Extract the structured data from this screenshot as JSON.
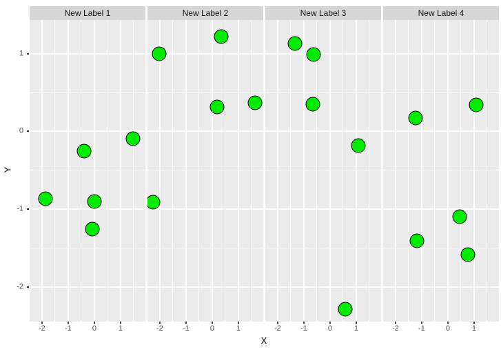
{
  "chart_data": {
    "type": "scatter",
    "title": "",
    "xlabel": "X",
    "ylabel": "Y",
    "x_domain": [
      -2.47,
      1.95
    ],
    "y_domain": [
      -2.44,
      1.43
    ],
    "x_major_ticks": [
      -2,
      -1,
      0,
      1
    ],
    "x_minor_ticks": [
      -1.5,
      -0.5,
      0.5,
      1.5
    ],
    "y_major_ticks": [
      1,
      0,
      -1,
      -2
    ],
    "y_minor_ticks": [
      0.5,
      -0.5,
      -1.5
    ],
    "grid": "on",
    "legend": "none",
    "facets": [
      {
        "label": "New Label 1",
        "points": [
          {
            "x": -0.38,
            "y": -0.25
          },
          {
            "x": 1.47,
            "y": -0.09
          },
          {
            "x": -1.87,
            "y": -0.86
          },
          {
            "x": 0.0,
            "y": -0.9
          },
          {
            "x": -0.08,
            "y": -1.25
          }
        ]
      },
      {
        "label": "New Label 2",
        "points": [
          {
            "x": -2.03,
            "y": 1.0
          },
          {
            "x": 0.34,
            "y": 1.22
          },
          {
            "x": 0.18,
            "y": 0.31
          },
          {
            "x": 1.63,
            "y": 0.37
          },
          {
            "x": -2.26,
            "y": -0.91
          }
        ]
      },
      {
        "label": "New Label 3",
        "points": [
          {
            "x": -1.34,
            "y": 1.13
          },
          {
            "x": -0.63,
            "y": 0.99
          },
          {
            "x": -0.66,
            "y": 0.35
          },
          {
            "x": 1.08,
            "y": -0.18
          },
          {
            "x": 0.58,
            "y": -2.28
          }
        ]
      },
      {
        "label": "New Label 4",
        "points": [
          {
            "x": -1.24,
            "y": 0.17
          },
          {
            "x": 1.08,
            "y": 0.34
          },
          {
            "x": 0.45,
            "y": -1.09
          },
          {
            "x": -1.18,
            "y": -1.4
          },
          {
            "x": 0.76,
            "y": -1.58
          }
        ]
      }
    ],
    "colors": {
      "point_fill": "#00EB00",
      "point_stroke": "#000000",
      "panel_bg": "#EBEBEB",
      "strip_bg": "#D6D6D6",
      "grid_line": "#FFFFFF",
      "tick_label": "#4D4D4D",
      "tick_mark": "#333333",
      "axis_title": "#000000"
    }
  }
}
